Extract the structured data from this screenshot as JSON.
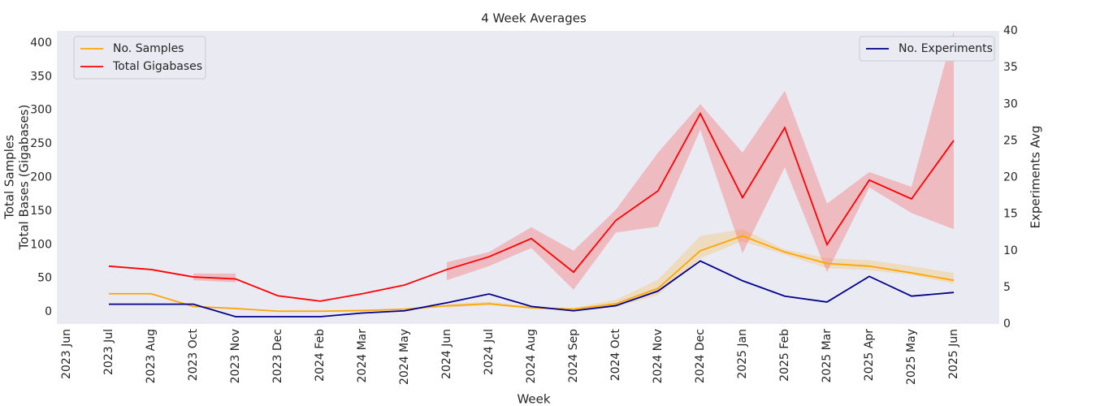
{
  "chart_data": {
    "type": "line",
    "title": "4 Week Averages",
    "xlabel": "Week",
    "ylabel": [
      "Total Samples",
      "Total Bases (Gigabases)"
    ],
    "y2label": "Experiments Avg",
    "categories": [
      "2023 Jun",
      "2023 Jul",
      "2023 Aug",
      "2023 Oct",
      "2023 Nov",
      "2023 Dec",
      "2024 Feb",
      "2024 Mar",
      "2024 May",
      "2024 Jun",
      "2024 Jul",
      "2024 Aug",
      "2024 Sep",
      "2024 Oct",
      "2024 Nov",
      "2024 Dec",
      "2025 Jan",
      "2025 Feb",
      "2025 Mar",
      "2025 Apr",
      "2025 May",
      "2025 Jun"
    ],
    "ylim": [
      -18,
      418
    ],
    "yticks": [
      0,
      50,
      100,
      150,
      200,
      250,
      300,
      350,
      400
    ],
    "y2lim": [
      0,
      40
    ],
    "y2ticks": [
      0,
      5,
      10,
      15,
      20,
      25,
      30,
      35,
      40
    ],
    "grid": false,
    "legend": "upper left",
    "legend2": "upper right",
    "series": [
      {
        "name": "No. Samples",
        "color": "#ffa500",
        "values": [
          null,
          27,
          27,
          8,
          5,
          1,
          1,
          2,
          4,
          9,
          12,
          6,
          4,
          12,
          35,
          91,
          113,
          89,
          72,
          68,
          58,
          47
        ],
        "lower": [
          null,
          null,
          null,
          null,
          null,
          null,
          null,
          null,
          null,
          6,
          10,
          5,
          2,
          7,
          25,
          80,
          105,
          85,
          65,
          62,
          55,
          42
        ],
        "upper": [
          null,
          null,
          null,
          null,
          null,
          null,
          null,
          null,
          null,
          12,
          15,
          8,
          6,
          18,
          48,
          113,
          123,
          93,
          80,
          77,
          68,
          58
        ]
      },
      {
        "name": "Total Gigabases",
        "color": "#ff0000",
        "values": [
          null,
          68,
          63,
          52,
          49,
          24,
          16,
          27,
          40,
          63,
          82,
          109,
          59,
          136,
          180,
          295,
          170,
          274,
          100,
          196,
          168,
          255
        ],
        "lower": [
          null,
          null,
          null,
          47,
          44,
          null,
          null,
          null,
          null,
          47,
          68,
          95,
          33,
          118,
          127,
          271,
          87,
          215,
          59,
          185,
          147,
          123
        ],
        "upper": [
          null,
          null,
          null,
          57,
          57,
          null,
          null,
          null,
          null,
          74,
          89,
          126,
          91,
          152,
          237,
          309,
          237,
          329,
          161,
          208,
          186,
          418
        ]
      },
      {
        "name": "No. Experiments",
        "color": "#00008b",
        "axis": "y2",
        "values": [
          null,
          2.7,
          2.7,
          2.7,
          1,
          1,
          1,
          1.5,
          1.8,
          2.9,
          4.1,
          2.4,
          1.8,
          2.5,
          4.5,
          8.6,
          5.9,
          3.8,
          3.0,
          6.5,
          3.8,
          4.3
        ]
      }
    ]
  }
}
